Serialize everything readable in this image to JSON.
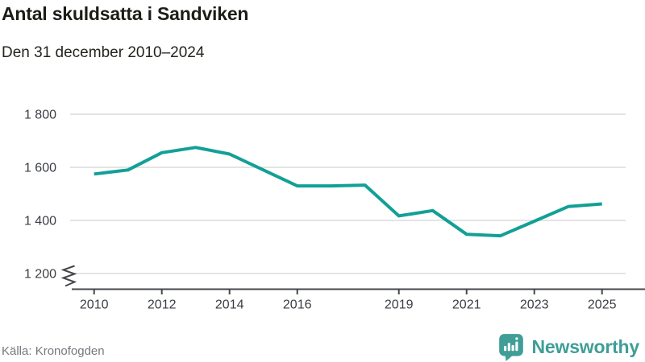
{
  "header": {
    "title": "Antal skuldsatta i Sandviken",
    "subtitle": "Den 31 december 2010–2024"
  },
  "footer": {
    "source": "Källa: Kronofogden",
    "brand_name": "Newsworthy"
  },
  "colors": {
    "line": "#12a096",
    "grid": "#dbdbdb",
    "axis": "#45474b",
    "tick_label": "#3a3e44",
    "brand_teal": "#3f9e97",
    "source_text": "#75787e"
  },
  "chart_data": {
    "type": "line",
    "title": "Antal skuldsatta i Sandviken",
    "subtitle": "Den 31 december 2010–2024",
    "xlabel": "",
    "ylabel": "",
    "x": [
      2010,
      2011,
      2012,
      2013,
      2014,
      2015,
      2016,
      2017,
      2018,
      2019,
      2020,
      2021,
      2022,
      2023,
      2024,
      2025
    ],
    "values": [
      1575,
      1590,
      1655,
      1675,
      1650,
      1590,
      1530,
      1530,
      1533,
      1417,
      1437,
      1348,
      1342,
      1397,
      1452,
      1462
    ],
    "series_name": "Antal skuldsatta",
    "series_color": "#12a096",
    "ylim": [
      1200,
      1800
    ],
    "yticks": [
      1800,
      1600,
      1400,
      1200
    ],
    "ytick_labels": [
      "1 800",
      "1 600",
      "1 400",
      "1 200"
    ],
    "xticks": [
      2010,
      2012,
      2014,
      2016,
      2019,
      2021,
      2023,
      2025
    ],
    "xtick_labels": [
      "2010",
      "2012",
      "2014",
      "2016",
      "2019",
      "2021",
      "2023",
      "2025"
    ],
    "grid": "horizontal-only",
    "legend": "none",
    "axis_break": true
  }
}
